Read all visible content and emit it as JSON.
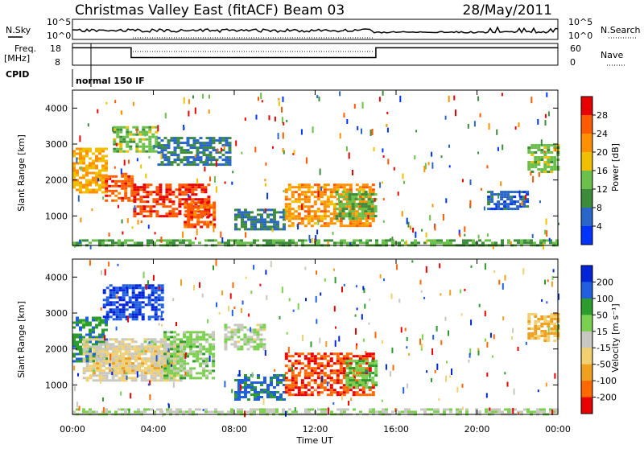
{
  "header": {
    "title": "Christmas Valley East (fitACF)",
    "beam": "Beam 03",
    "date": "28/May/2011"
  },
  "panels": {
    "nsky_label": "N.Sky",
    "nsky_ticks": [
      "10^5",
      "10^0"
    ],
    "nsearch_label": "N.Search",
    "nsearch_ticks": [
      "10^5",
      "10^0"
    ],
    "freq_label": "Freq.",
    "freq_unit": "[MHz]",
    "freq_ticks": [
      "18",
      "8"
    ],
    "nave_label": "Nave",
    "nave_ticks": [
      "60",
      "0"
    ],
    "cpid_label": "CPID",
    "mode_text": "normal 150 IF"
  },
  "axes": {
    "x_label": "Time UT",
    "x_ticks": [
      "00:00",
      "04:00",
      "08:00",
      "12:00",
      "16:00",
      "20:00",
      "00:00"
    ],
    "y_label": "Slant Range [km]",
    "y_ticks": [
      "4000",
      "3000",
      "2000",
      "1000"
    ],
    "power_bar_label": "Power [dB]",
    "power_ticks": [
      "28",
      "24",
      "20",
      "16",
      "12",
      "8",
      "4"
    ],
    "velocity_bar_label": "Velocity [m s⁻¹]",
    "velocity_ticks": [
      "200",
      "100",
      "50",
      "15",
      "-15",
      "-50",
      "-100",
      "-200"
    ]
  },
  "colors": {
    "power_scale": [
      "#0033ff",
      "#2a66c8",
      "#3c8c3c",
      "#6ac04a",
      "#f0c000",
      "#ff9000",
      "#ff5a00",
      "#e80000"
    ],
    "velocity_scale": [
      "#0024d8",
      "#2060e0",
      "#2c9c2c",
      "#7cd050",
      "#c8c8c0",
      "#f0d070",
      "#f0a020",
      "#ff6800",
      "#e80000"
    ]
  },
  "chart_data": [
    {
      "type": "heatmap",
      "name": "power",
      "xlabel": "Time UT",
      "ylabel": "Slant Range [km]",
      "xlim": [
        0,
        24
      ],
      "ylim": [
        180,
        4500
      ],
      "colorbar_label": "Power [dB]",
      "colorbar_range": [
        0,
        32
      ],
      "regions": [
        {
          "t": [
            0.0,
            1.6
          ],
          "r": [
            1650,
            2900
          ],
          "value": 20
        },
        {
          "t": [
            1.6,
            3.0
          ],
          "r": [
            1450,
            2200
          ],
          "value": 26
        },
        {
          "t": [
            2.0,
            4.2
          ],
          "r": [
            2800,
            3500
          ],
          "value": 14
        },
        {
          "t": [
            3.0,
            6.8
          ],
          "r": [
            1000,
            1900
          ],
          "value": 28
        },
        {
          "t": [
            4.2,
            7.8
          ],
          "r": [
            2400,
            3200
          ],
          "value": 8
        },
        {
          "t": [
            5.5,
            7.0
          ],
          "r": [
            700,
            1400
          ],
          "value": 26
        },
        {
          "t": [
            8.0,
            10.5
          ],
          "r": [
            600,
            1200
          ],
          "value": 8
        },
        {
          "t": [
            10.5,
            14.8
          ],
          "r": [
            700,
            1900
          ],
          "value": 22
        },
        {
          "t": [
            13.0,
            15.0
          ],
          "r": [
            900,
            1700
          ],
          "value": 12
        },
        {
          "t": [
            20.5,
            22.5
          ],
          "r": [
            1200,
            1700
          ],
          "value": 6
        },
        {
          "t": [
            22.5,
            24.0
          ],
          "r": [
            2200,
            3000
          ],
          "value": 14
        },
        {
          "t": [
            0.0,
            24.0
          ],
          "r": [
            180,
            350
          ],
          "value": 12
        }
      ]
    },
    {
      "type": "heatmap",
      "name": "velocity",
      "xlabel": "Time UT",
      "ylabel": "Slant Range [km]",
      "xlim": [
        0,
        24
      ],
      "ylim": [
        180,
        4500
      ],
      "colorbar_label": "Velocity [m s⁻¹]",
      "colorbar_range": [
        -200,
        200
      ],
      "regions": [
        {
          "t": [
            0.0,
            1.6
          ],
          "r": [
            1650,
            2900
          ],
          "value": 100
        },
        {
          "t": [
            0.5,
            5.5
          ],
          "r": [
            1100,
            2300
          ],
          "value": -10
        },
        {
          "t": [
            1.0,
            5.0
          ],
          "r": [
            1300,
            2100
          ],
          "value": -40
        },
        {
          "t": [
            1.5,
            4.5
          ],
          "r": [
            2800,
            3800
          ],
          "value": 150
        },
        {
          "t": [
            4.5,
            7.0
          ],
          "r": [
            1200,
            2500
          ],
          "value": 40
        },
        {
          "t": [
            7.5,
            9.5
          ],
          "r": [
            2000,
            2700
          ],
          "value": 10
        },
        {
          "t": [
            8.0,
            10.5
          ],
          "r": [
            600,
            1300
          ],
          "value": 120
        },
        {
          "t": [
            10.5,
            14.8
          ],
          "r": [
            700,
            1900
          ],
          "value": -150
        },
        {
          "t": [
            13.5,
            15.0
          ],
          "r": [
            900,
            1700
          ],
          "value": 60
        },
        {
          "t": [
            22.5,
            24.0
          ],
          "r": [
            2200,
            3000
          ],
          "value": -70
        },
        {
          "t": [
            0.0,
            24.0
          ],
          "r": [
            180,
            350
          ],
          "value": 20
        }
      ]
    },
    {
      "type": "line",
      "name": "frequency",
      "ylabel": "Freq. [MHz]",
      "ylim": [
        8,
        18
      ],
      "x": [
        0,
        2.9,
        2.9,
        15.0,
        15.0,
        24
      ],
      "y": [
        16,
        16,
        11.5,
        11.5,
        16,
        16
      ]
    }
  ]
}
